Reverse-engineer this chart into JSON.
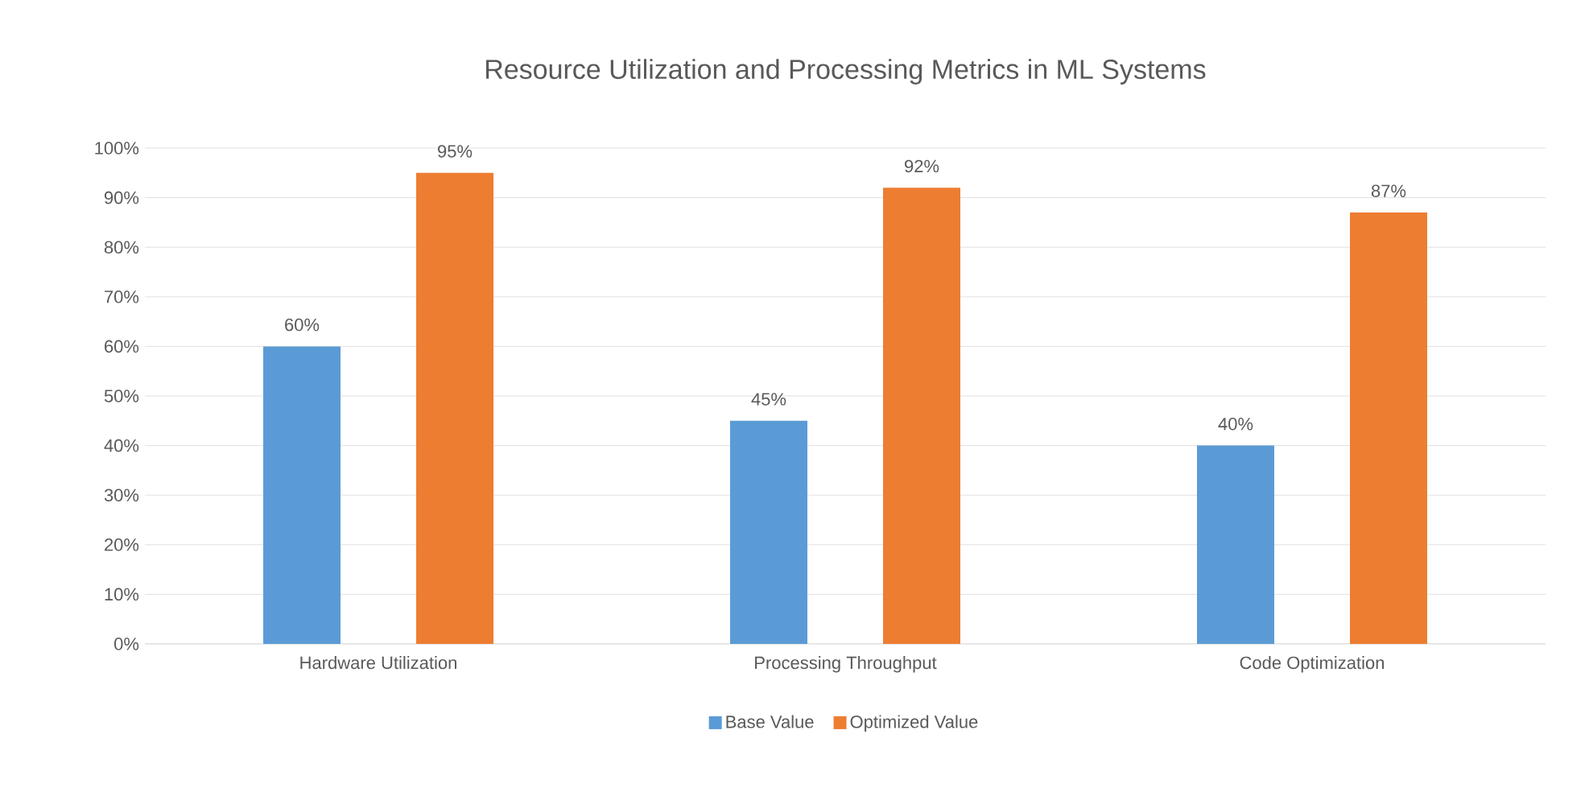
{
  "chart_data": {
    "type": "bar",
    "title": "Resource Utilization and Processing Metrics in ML Systems",
    "categories": [
      "Hardware Utilization",
      "Processing Throughput",
      "Code Optimization"
    ],
    "series": [
      {
        "name": "Base Value",
        "color": "#5b9bd5",
        "values": [
          60,
          45,
          40
        ],
        "value_labels": [
          "60%",
          "45%",
          "40%"
        ]
      },
      {
        "name": "Optimized Value",
        "color": "#ed7d31",
        "values": [
          95,
          92,
          87
        ],
        "value_labels": [
          "95%",
          "92%",
          "87%"
        ]
      }
    ],
    "ylim": [
      0,
      100
    ],
    "yticks": [
      {
        "value": 0,
        "label": "0%"
      },
      {
        "value": 10,
        "label": "10%"
      },
      {
        "value": 20,
        "label": "20%"
      },
      {
        "value": 30,
        "label": "30%"
      },
      {
        "value": 40,
        "label": "40%"
      },
      {
        "value": 50,
        "label": "50%"
      },
      {
        "value": 60,
        "label": "60%"
      },
      {
        "value": 70,
        "label": "70%"
      },
      {
        "value": 80,
        "label": "80%"
      },
      {
        "value": 90,
        "label": "90%"
      },
      {
        "value": 100,
        "label": "100%"
      }
    ],
    "grid": "y",
    "legend": "bottom"
  }
}
